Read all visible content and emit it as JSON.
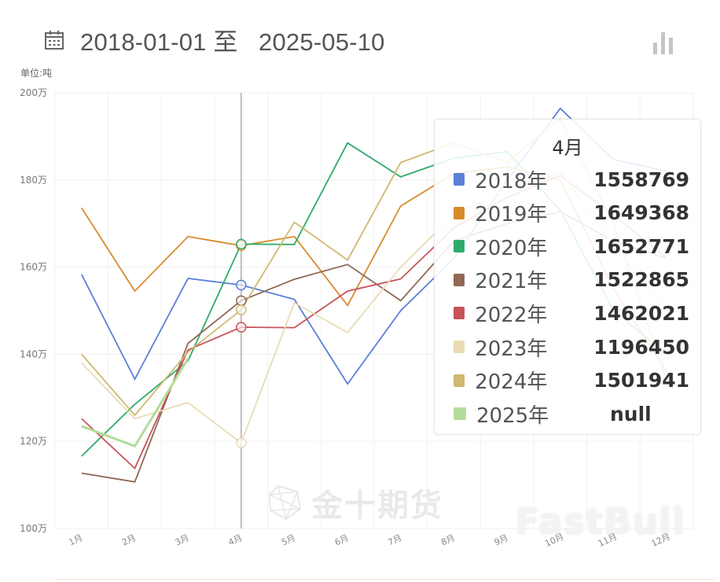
{
  "header": {
    "icon": "calendar-icon",
    "start_date": "2018-01-01",
    "separator": "至",
    "end_date": "2025-05-10",
    "title": "2018-01-01 至   2025-05-10"
  },
  "toolbar": {
    "chart_type_icon": "bar-chart-icon"
  },
  "unit_label": "单位:吨",
  "tooltip": {
    "title": "4月",
    "rows": [
      {
        "label": "2018年",
        "value": "1558769",
        "color": "#5b7fd9"
      },
      {
        "label": "2019年",
        "value": "1649368",
        "color": "#d98a2b"
      },
      {
        "label": "2020年",
        "value": "1652771",
        "color": "#2eab6a"
      },
      {
        "label": "2021年",
        "value": "1522865",
        "color": "#8f6955"
      },
      {
        "label": "2022年",
        "value": "1462021",
        "color": "#c9525a"
      },
      {
        "label": "2023年",
        "value": "1196450",
        "color": "#e8dcb5"
      },
      {
        "label": "2024年",
        "value": "1501941",
        "color": "#cfb870"
      },
      {
        "label": "2025年",
        "value": "null",
        "color": "#b3dc9a"
      }
    ]
  },
  "watermarks": {
    "cn": "金十期货",
    "en": "FastBull"
  },
  "chart_data": {
    "type": "line",
    "title": "2018-01-01 至 2025-05-10",
    "xlabel": "",
    "ylabel": "单位:吨",
    "ylim": [
      1000000,
      2000000
    ],
    "y_ticks": [
      "100万",
      "120万",
      "140万",
      "160万",
      "180万",
      "200万"
    ],
    "categories": [
      "1月",
      "2月",
      "3月",
      "4月",
      "5月",
      "6月",
      "7月",
      "8月",
      "9月",
      "10月",
      "11月",
      "12月"
    ],
    "grid": true,
    "highlight_category": "4月",
    "series": [
      {
        "name": "2018年",
        "color": "#5b7fd9",
        "values": [
          1583000,
          1343000,
          1574000,
          1558769,
          1526000,
          1332000,
          1500000,
          1620000,
          1800000,
          1964000,
          1847000,
          1820000
        ]
      },
      {
        "name": "2019年",
        "color": "#d98a2b",
        "values": [
          1736000,
          1545000,
          1670000,
          1649368,
          1670000,
          1512000,
          1740000,
          1815000,
          1830000,
          1800000,
          1550000,
          1360000
        ]
      },
      {
        "name": "2020年",
        "color": "#2eab6a",
        "values": [
          1166000,
          1285000,
          1385000,
          1652771,
          1652000,
          1885000,
          1807000,
          1850000,
          1865000,
          1730000,
          1500000,
          1400000
        ]
      },
      {
        "name": "2021年",
        "color": "#8f6955",
        "values": [
          1127000,
          1107000,
          1425000,
          1522865,
          1572000,
          1606000,
          1523000,
          1660000,
          1700000,
          1727000,
          1660000,
          1620000
        ]
      },
      {
        "name": "2022年",
        "color": "#c9525a",
        "values": [
          1252000,
          1138000,
          1410000,
          1462021,
          1461000,
          1545000,
          1573000,
          1690000,
          1760000,
          1810000,
          1720000,
          1620000
        ]
      },
      {
        "name": "2023年",
        "color": "#e8dcb5",
        "values": [
          1380000,
          1252000,
          1289000,
          1196450,
          1518000,
          1450000,
          1600000,
          1720000,
          1780000,
          1820000,
          1650000,
          1500000
        ]
      },
      {
        "name": "2024年",
        "color": "#cfb870",
        "values": [
          1400000,
          1260000,
          1405000,
          1501941,
          1703000,
          1616000,
          1840000,
          1885000,
          1840000,
          1940000,
          1700000,
          1340000
        ]
      },
      {
        "name": "2025年",
        "color": "#b3dc9a",
        "values": [
          1235000,
          1189000,
          1390000,
          null,
          null,
          null,
          null,
          null,
          null,
          null,
          null,
          null
        ]
      }
    ]
  }
}
